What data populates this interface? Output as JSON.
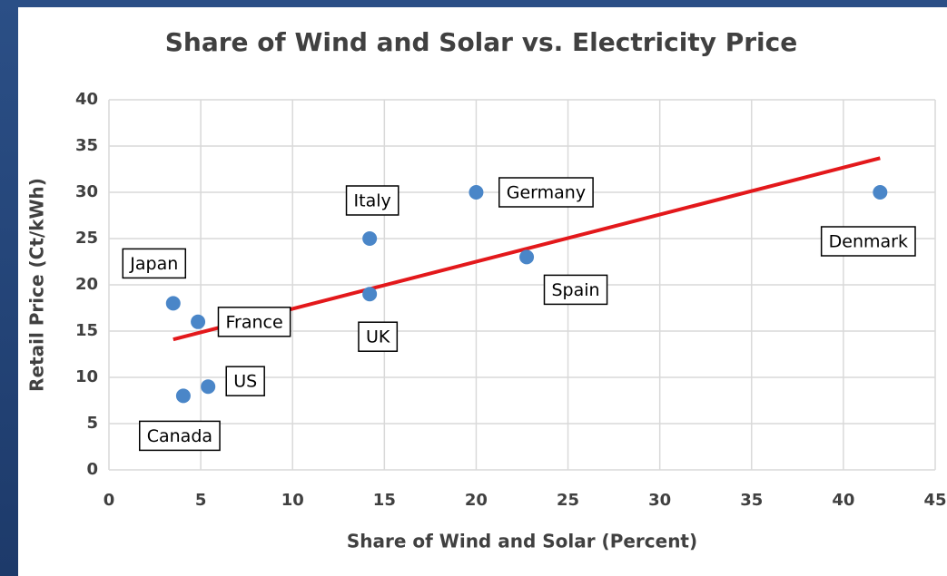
{
  "chart_data": {
    "type": "scatter",
    "title": "Share of Wind and Solar vs. Electricity Price",
    "x_label": "Share of Wind and Solar (Percent)",
    "y_label": "Retail Price (Ct/kWh)",
    "labels": [
      "Japan",
      "France",
      "Canada",
      "US",
      "Italy",
      "UK",
      "Germany",
      "Spain",
      "Denmark"
    ],
    "x": [
      3.5,
      4.85,
      4.05,
      5.4,
      14.2,
      14.2,
      20.0,
      22.75,
      42.0
    ],
    "values": [
      18,
      16,
      8,
      9,
      25,
      19,
      30,
      23,
      30
    ],
    "color": "#4a86c8",
    "trendline": {
      "x": [
        3.5,
        42.0
      ],
      "values": [
        14.1,
        33.7
      ],
      "color": "#e3181b"
    },
    "xlim": [
      0,
      45
    ],
    "xticks": [
      0,
      5,
      10,
      15,
      20,
      25,
      30,
      35,
      40,
      45
    ],
    "ylim": [
      0,
      40
    ],
    "yticks": [
      0,
      5,
      10,
      15,
      20,
      25,
      30,
      35,
      40
    ],
    "grid": true
  }
}
